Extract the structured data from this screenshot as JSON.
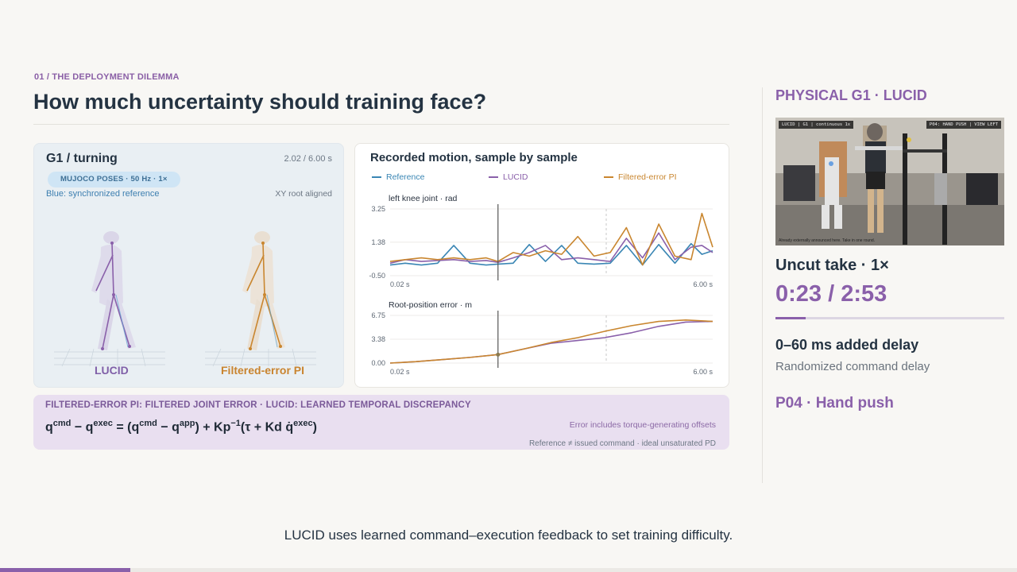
{
  "kicker": "01 / THE DEPLOYMENT DILEMMA",
  "title": "How much uncertainty should training face?",
  "viewer": {
    "title": "G1 / turning",
    "time": "2.02 / 6.00 s",
    "pill": "MUJOCO POSES · 50 Hz · 1×",
    "sub": "Blue: synchronized reference",
    "note": "XY root aligned",
    "label_left": "LUCID",
    "label_right": "Filtered-error PI"
  },
  "chart_panel": {
    "title": "Recorded motion, sample by sample",
    "legend": [
      "Reference",
      "LUCID",
      "Filtered-error PI"
    ],
    "colors": {
      "reference": "#3a86b4",
      "lucid": "#8a60aa",
      "fepi": "#c9862f"
    }
  },
  "chart_data": [
    {
      "type": "line",
      "title": "left knee joint · rad",
      "xlabel": "",
      "ylabel": "",
      "x_tick_labels": [
        "0.02 s",
        "6.00 s"
      ],
      "y_tick_labels": [
        "3.25",
        "1.38",
        "-0.50"
      ],
      "xlim": [
        0.02,
        6.0
      ],
      "ylim": [
        -0.5,
        3.25
      ],
      "cursor_x": 2.02,
      "x": [
        0.02,
        0.3,
        0.6,
        0.9,
        1.2,
        1.5,
        1.8,
        2.02,
        2.3,
        2.6,
        2.9,
        3.2,
        3.5,
        3.8,
        4.1,
        4.4,
        4.7,
        5.0,
        5.3,
        5.6,
        5.8,
        6.0
      ],
      "series": [
        {
          "name": "Reference",
          "values": [
            0.1,
            0.2,
            0.1,
            0.2,
            1.2,
            0.2,
            0.1,
            0.15,
            0.2,
            1.25,
            0.3,
            1.2,
            0.2,
            0.15,
            0.2,
            1.2,
            0.1,
            1.25,
            0.2,
            1.3,
            0.7,
            0.9
          ]
        },
        {
          "name": "LUCID",
          "values": [
            0.2,
            0.4,
            0.3,
            0.35,
            0.4,
            0.3,
            0.35,
            0.25,
            0.5,
            0.8,
            1.2,
            0.4,
            0.5,
            0.4,
            0.3,
            1.6,
            0.5,
            1.9,
            0.4,
            1.1,
            1.2,
            0.8
          ]
        },
        {
          "name": "Filtered-error PI",
          "values": [
            0.3,
            0.4,
            0.5,
            0.4,
            0.5,
            0.4,
            0.5,
            0.3,
            0.8,
            0.6,
            0.9,
            0.7,
            1.7,
            0.6,
            0.8,
            2.2,
            0.1,
            2.4,
            0.6,
            0.4,
            3.0,
            1.1
          ]
        }
      ]
    },
    {
      "type": "line",
      "title": "Root-position error · m",
      "xlabel": "",
      "ylabel": "",
      "x_tick_labels": [
        "0.02 s",
        "6.00 s"
      ],
      "y_tick_labels": [
        "6.75",
        "3.38",
        "0.00"
      ],
      "xlim": [
        0.02,
        6.0
      ],
      "ylim": [
        0,
        6.75
      ],
      "cursor_x": 2.02,
      "x": [
        0.02,
        0.5,
        1.0,
        1.5,
        2.02,
        2.5,
        3.0,
        3.5,
        4.0,
        4.5,
        5.0,
        5.5,
        6.0
      ],
      "series": [
        {
          "name": "LUCID",
          "values": [
            0.0,
            0.2,
            0.5,
            0.8,
            1.2,
            2.0,
            2.8,
            3.2,
            3.6,
            4.3,
            5.2,
            5.8,
            5.9
          ]
        },
        {
          "name": "Filtered-error PI",
          "values": [
            0.0,
            0.2,
            0.5,
            0.8,
            1.2,
            2.0,
            2.9,
            3.6,
            4.5,
            5.3,
            5.9,
            6.1,
            5.9
          ]
        }
      ]
    }
  ],
  "formula": {
    "head": "FILTERED-ERROR PI: FILTERED JOINT ERROR · LUCID: LEARNED TEMPORAL DISCREPANCY",
    "q": "q",
    "sup_cmd": "cmd",
    "sup_exec": "exec",
    "sup_app": "app",
    "minus": " − ",
    "eq_sign": " = (",
    "close_plus": ") + Kp",
    "inv": "−1",
    "tail_start": "(τ + Kd q̇",
    "tail_end": ")",
    "note1": "Error includes torque-generating offsets",
    "note2": "Reference ≠ issued command · ideal unsaturated PD"
  },
  "right": {
    "heading": "PHYSICAL G1 · LUCID",
    "video_tag_left": "LUCID | G1 | continuous 1x",
    "video_tag_right": "P04: HAND PUSH | VIEW LEFT",
    "video_caption": "Already externally announced here. Take in one round.",
    "take": "Uncut take · 1×",
    "clock": "0:23 / 2:53",
    "progress": 0.133,
    "delay": "0–60 ms added delay",
    "delay_sub": "Randomized command delay",
    "scenario": "P04 · Hand push"
  },
  "caption": "LUCID uses learned command–execution feedback to set training difficulty.",
  "slide_progress": 0.128
}
